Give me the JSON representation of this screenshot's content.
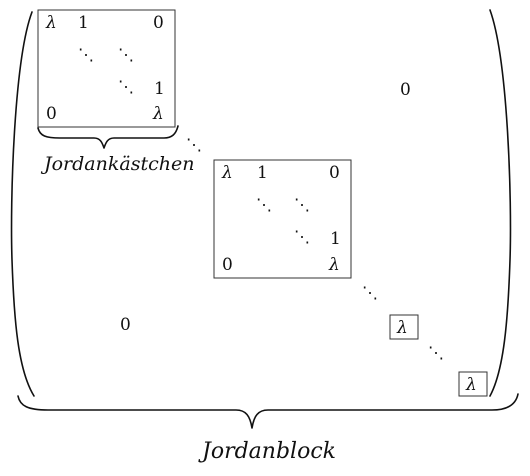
{
  "matrix": {
    "lambda": "λ",
    "one": "1",
    "zero": "0",
    "ddots": "⋱",
    "cdots": "⋯"
  },
  "labels": {
    "jordan_kaestchen": "Jordankästchen",
    "jordan_block": "Jordanblock"
  }
}
